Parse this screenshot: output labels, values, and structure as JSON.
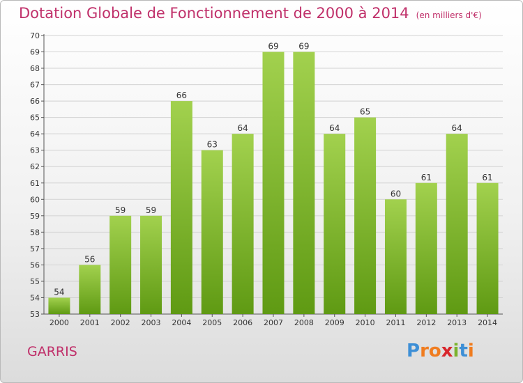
{
  "title": "Dotation Globale de Fonctionnement de 2000 à 2014",
  "unit": "(en milliers d'€)",
  "place": "GARRIS",
  "logo": {
    "text": "Proxiti",
    "letters": [
      {
        "ch": "P",
        "color": "#3d8fd6"
      },
      {
        "ch": "r",
        "color": "#f07c1f"
      },
      {
        "ch": "o",
        "color": "#f07c1f"
      },
      {
        "ch": "x",
        "color": "#d8262c"
      },
      {
        "ch": "i",
        "color": "#7bb32e"
      },
      {
        "ch": "t",
        "color": "#3d8fd6"
      },
      {
        "ch": "i",
        "color": "#f07c1f"
      }
    ]
  },
  "colors": {
    "bar_top": "#a2d14e",
    "bar_bottom": "#5f9a13",
    "title": "#c0306a",
    "grid": "#d2d2d2",
    "axis": "#555555"
  },
  "chart_data": {
    "type": "bar",
    "title": "Dotation Globale de Fonctionnement de 2000 à 2014",
    "subtitle": "(en milliers d'€)",
    "xlabel": "",
    "ylabel": "",
    "categories": [
      "2000",
      "2001",
      "2002",
      "2003",
      "2004",
      "2005",
      "2006",
      "2007",
      "2008",
      "2009",
      "2010",
      "2011",
      "2012",
      "2013",
      "2014"
    ],
    "values": [
      54,
      56,
      59,
      59,
      66,
      63,
      64,
      69,
      69,
      64,
      65,
      60,
      61,
      64,
      61
    ],
    "ylim": [
      53,
      70
    ],
    "yticks": [
      53,
      54,
      55,
      56,
      57,
      58,
      59,
      60,
      61,
      62,
      63,
      64,
      65,
      66,
      67,
      68,
      69,
      70
    ],
    "grid": true,
    "legend": "none"
  }
}
